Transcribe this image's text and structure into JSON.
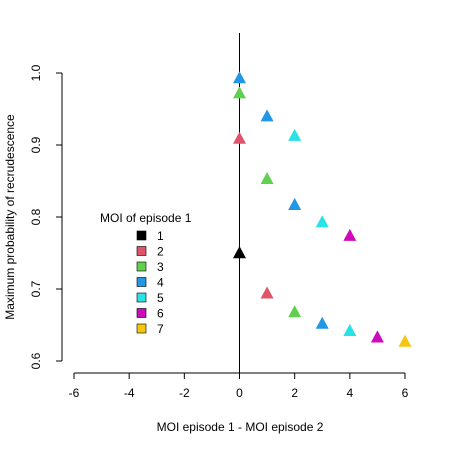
{
  "chart_data": {
    "type": "scatter",
    "xlabel": "MOI episode 1 - MOI episode 2",
    "ylabel": "Maximum probability of recrudescence",
    "xlim": [
      -6,
      6
    ],
    "ylim": [
      0.6,
      1.0
    ],
    "xticks": [
      -6,
      -4,
      -2,
      0,
      2,
      4,
      6
    ],
    "yticks": [
      0.6,
      0.7,
      0.8,
      0.9,
      1.0
    ],
    "xtick_labels": [
      "-6",
      "-4",
      "-2",
      "0",
      "2",
      "4",
      "6"
    ],
    "ytick_labels": [
      "0.6",
      "0.7",
      "0.8",
      "0.9",
      "1.0"
    ],
    "vertical_reference_line_x": 0,
    "grid": false,
    "marker": "filled-triangle",
    "legend": {
      "title": "MOI of episode 1",
      "placement": "center-left",
      "entries": [
        "1",
        "2",
        "3",
        "4",
        "5",
        "6",
        "7"
      ]
    },
    "series": [
      {
        "name": "1",
        "color": "#000000",
        "points": [
          {
            "x": 0,
            "y": 0.75
          }
        ]
      },
      {
        "name": "2",
        "color": "#DF536B",
        "points": [
          {
            "x": 0,
            "y": 0.909
          },
          {
            "x": 1,
            "y": 0.694
          }
        ]
      },
      {
        "name": "3",
        "color": "#61D04F",
        "points": [
          {
            "x": 0,
            "y": 0.972
          },
          {
            "x": 1,
            "y": 0.853
          },
          {
            "x": 2,
            "y": 0.668
          }
        ]
      },
      {
        "name": "4",
        "color": "#2297E6",
        "points": [
          {
            "x": 0,
            "y": 0.993
          },
          {
            "x": 1,
            "y": 0.94
          },
          {
            "x": 2,
            "y": 0.817
          },
          {
            "x": 3,
            "y": 0.652
          }
        ]
      },
      {
        "name": "5",
        "color": "#28E2E5",
        "points": [
          {
            "x": 2,
            "y": 0.913
          },
          {
            "x": 3,
            "y": 0.793
          },
          {
            "x": 4,
            "y": 0.642
          }
        ]
      },
      {
        "name": "6",
        "color": "#CD0BBC",
        "points": [
          {
            "x": 4,
            "y": 0.774
          },
          {
            "x": 5,
            "y": 0.633
          }
        ]
      },
      {
        "name": "7",
        "color": "#F5C710",
        "points": [
          {
            "x": 6,
            "y": 0.627
          }
        ]
      }
    ]
  }
}
